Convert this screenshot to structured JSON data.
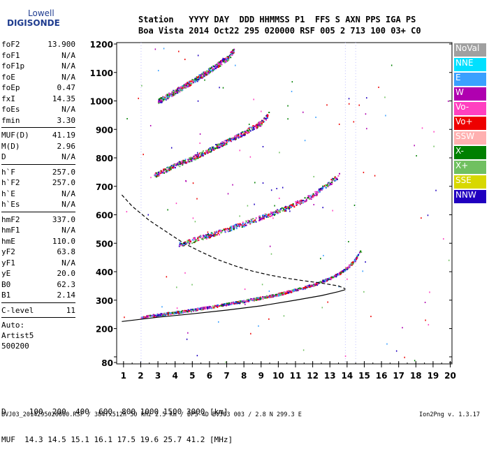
{
  "logo": {
    "brand": "Lowell",
    "product": "DIGISONDE"
  },
  "header": {
    "line1": "Station   YYYY DAY  DDD HHMMSS P1  FFS S AXN PPS IGA PS",
    "line2": "Boa Vista 2014 Oct22 295 020000 RSF 005 2 713 100 03+ C0"
  },
  "params": [
    {
      "label": "foF2",
      "value": "13.900"
    },
    {
      "label": "foF1",
      "value": "N/A"
    },
    {
      "label": "foF1p",
      "value": "N/A"
    },
    {
      "label": "foE",
      "value": "N/A"
    },
    {
      "label": "foEp",
      "value": "0.47"
    },
    {
      "label": "fxI",
      "value": "14.35"
    },
    {
      "label": "foEs",
      "value": "N/A"
    },
    {
      "label": "fmin",
      "value": "3.30"
    },
    {
      "sep": true
    },
    {
      "label": "MUF(D)",
      "value": "41.19"
    },
    {
      "label": "M(D)",
      "value": "2.96"
    },
    {
      "label": "D",
      "value": "N/A"
    },
    {
      "sep": true
    },
    {
      "label": "h`F",
      "value": "257.0"
    },
    {
      "label": "h`F2",
      "value": "257.0"
    },
    {
      "label": "h`E",
      "value": "N/A"
    },
    {
      "label": "h`Es",
      "value": "N/A"
    },
    {
      "sep": true
    },
    {
      "label": "hmF2",
      "value": "337.0"
    },
    {
      "label": "hmF1",
      "value": "N/A"
    },
    {
      "label": "hmE",
      "value": "110.0"
    },
    {
      "label": "yF2",
      "value": "63.8"
    },
    {
      "label": "yF1",
      "value": "N/A"
    },
    {
      "label": "yE",
      "value": "20.0"
    },
    {
      "label": "B0",
      "value": "62.3"
    },
    {
      "label": "B1",
      "value": "2.14"
    },
    {
      "sep": true
    },
    {
      "label": "C-level",
      "value": "11"
    },
    {
      "sep": true
    },
    {
      "text": "Auto:"
    },
    {
      "text": "Artist5"
    },
    {
      "text": "500200"
    }
  ],
  "legend": [
    {
      "label": "NoVal",
      "color": "#a0a0a0"
    },
    {
      "label": "NNE",
      "color": "#00e0ff"
    },
    {
      "label": "E",
      "color": "#3aa0ff"
    },
    {
      "label": "W",
      "color": "#b000b0"
    },
    {
      "label": "Vo-",
      "color": "#ff40c0"
    },
    {
      "label": "Vo+",
      "color": "#ee0000"
    },
    {
      "label": "SSW",
      "color": "#ffb0b0"
    },
    {
      "label": "X-",
      "color": "#008000"
    },
    {
      "label": "X+",
      "color": "#70c060"
    },
    {
      "label": "SSE",
      "color": "#d8d800"
    },
    {
      "label": "NNW",
      "color": "#2000c0"
    }
  ],
  "footer": {
    "line1": "D     100  200  400  600  800 1000 1500 3000 [km]",
    "line2": "MUF  14.3 14.5 15.1 16.1 17.5 19.6 25.7 41.2 [MHz]"
  },
  "fileinfo": "BVJ03_2014295020000.RSF / 384fx512h 50 kHz 2.5 km / DPS-4D BVJ03 003 / 2.8 N 299.3 E",
  "version": "Ion2Png v. 1.3.17",
  "chart_data": {
    "type": "scatter",
    "xlim": [
      1,
      20
    ],
    "ylim": [
      80,
      1200
    ],
    "x_ticks": [
      1,
      2,
      3,
      4,
      5,
      6,
      7,
      8,
      9,
      10,
      11,
      12,
      13,
      14,
      15,
      16,
      17,
      18,
      19,
      20
    ],
    "y_ticks": [
      80,
      100,
      200,
      300,
      400,
      500,
      600,
      700,
      800,
      900,
      1000,
      1100,
      1200
    ],
    "traces": [
      {
        "name": "F2 trace",
        "x": [
          2.0,
          3.0,
          4.0,
          5.0,
          6.0,
          7.0,
          8.0,
          9.0,
          10.0,
          11.0,
          12.0,
          13.0,
          13.5,
          14.0,
          14.4,
          14.8
        ],
        "y": [
          241,
          250,
          258,
          267,
          277,
          288,
          298,
          310,
          322,
          338,
          355,
          378,
          395,
          415,
          440,
          480
        ]
      },
      {
        "name": "F2 2nd hop",
        "x": [
          4.2,
          5.0,
          6.0,
          7.0,
          8.0,
          9.0,
          10.0,
          11.0,
          12.0,
          13.0,
          13.5
        ],
        "y": [
          498,
          512,
          530,
          550,
          570,
          592,
          614,
          640,
          670,
          715,
          740
        ]
      },
      {
        "name": "F2 3rd hop",
        "x": [
          2.8,
          4.0,
          5.0,
          6.0,
          7.0,
          8.0,
          9.0,
          9.4
        ],
        "y": [
          740,
          775,
          800,
          830,
          860,
          890,
          925,
          955
        ]
      },
      {
        "name": "F2 4th hop",
        "x": [
          3.0,
          4.0,
          5.0,
          6.0,
          7.0,
          7.4
        ],
        "y": [
          1000,
          1035,
          1070,
          1110,
          1150,
          1180
        ]
      }
    ],
    "profile_solid": {
      "x": [
        0.9,
        3.0,
        5.0,
        7.0,
        9.0,
        11.0,
        12.5,
        13.5,
        13.9
      ],
      "y": [
        225,
        240,
        252,
        265,
        280,
        300,
        316,
        330,
        337
      ]
    },
    "profile_dashed": {
      "x": [
        0.9,
        1.5,
        2.5,
        3.5,
        4.5,
        5.5,
        6.5,
        7.5,
        8.5,
        9.5,
        10.5,
        11.5,
        12.5,
        13.5,
        13.9
      ],
      "y": [
        670,
        630,
        580,
        540,
        500,
        470,
        442,
        420,
        402,
        388,
        377,
        368,
        360,
        350,
        340
      ]
    }
  }
}
